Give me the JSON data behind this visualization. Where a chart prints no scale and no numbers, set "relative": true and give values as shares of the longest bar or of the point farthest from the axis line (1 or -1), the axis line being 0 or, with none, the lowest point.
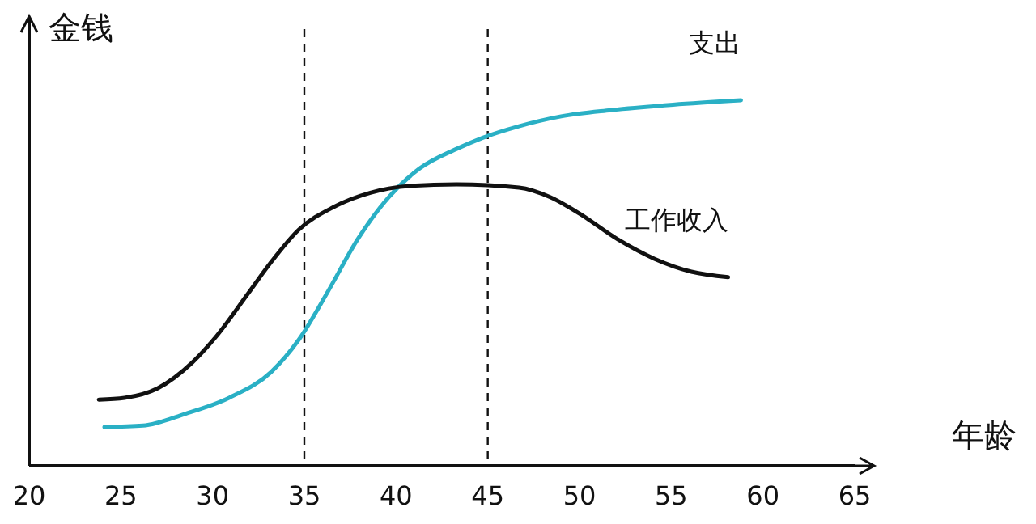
{
  "chart_data": {
    "type": "line",
    "xlabel": "年龄",
    "ylabel": "金钱",
    "relative": true,
    "xlim": [
      20,
      65
    ],
    "xticks": [
      20,
      25,
      30,
      35,
      40,
      45,
      50,
      55,
      60,
      65
    ],
    "series": [
      {
        "name": "支出",
        "color": "#2ab0c5",
        "x": [
          24.1,
          26.2,
          28.5,
          30.9,
          33.2,
          34.7,
          36.3,
          37.9,
          39.6,
          41.3,
          43.3,
          44.7,
          46.7,
          49.0,
          51.7,
          55.1,
          58.8
        ],
        "values": [
          0.106,
          0.11,
          0.142,
          0.186,
          0.257,
          0.345,
          0.478,
          0.619,
          0.735,
          0.814,
          0.867,
          0.897,
          0.929,
          0.956,
          0.973,
          0.988,
          1
        ]
      },
      {
        "name": "工作收入",
        "color": "#111111",
        "x": [
          23.8,
          25.2,
          27.0,
          28.9,
          30.2,
          31.9,
          33.2,
          34.7,
          36.6,
          38.6,
          40.6,
          43.3,
          46.7,
          48.4,
          50.0,
          52.1,
          54.1,
          56.1,
          58.1
        ],
        "values": [
          0.181,
          0.186,
          0.212,
          0.283,
          0.354,
          0.469,
          0.558,
          0.646,
          0.708,
          0.747,
          0.765,
          0.77,
          0.761,
          0.735,
          0.69,
          0.619,
          0.566,
          0.531,
          0.516
        ]
      }
    ],
    "ref_lines": [
      {
        "axis": "x",
        "value": 35,
        "line_style": "dashed"
      },
      {
        "axis": "x",
        "value": 45,
        "line_style": "dashed"
      }
    ],
    "grid": false,
    "legend": false,
    "marker": "none",
    "line_style": "solid"
  }
}
